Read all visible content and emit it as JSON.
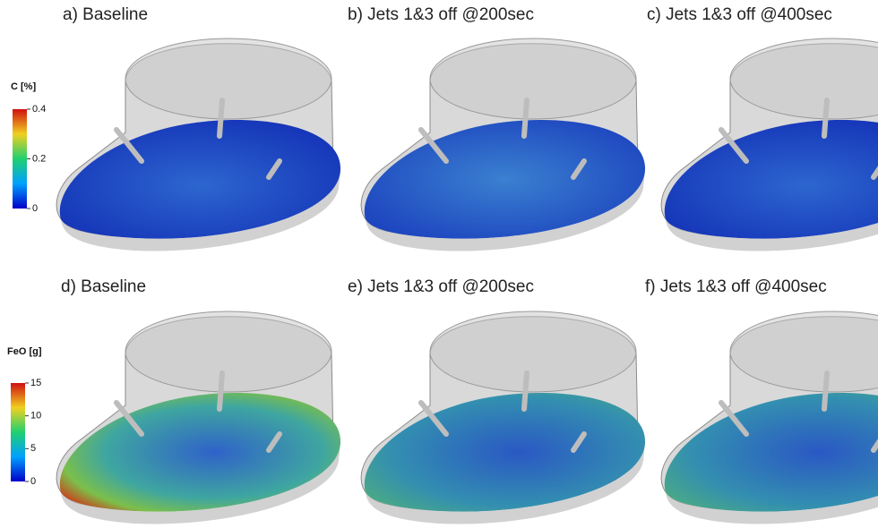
{
  "panels": [
    {
      "title": "a) Baseline"
    },
    {
      "title": "b) Jets 1&3 off @200sec"
    },
    {
      "title": "c) Jets 1&3 off @400sec"
    },
    {
      "title": "d) Baseline"
    },
    {
      "title": "e) Jets 1&3 off @200sec"
    },
    {
      "title": "f) Jets 1&3 off @400sec"
    }
  ],
  "colorbars": [
    {
      "label": "C [%]",
      "lim": [
        0,
        0.4
      ],
      "ticks": [
        0,
        0.2,
        0.4
      ]
    },
    {
      "label": "FeO [g]",
      "lim": [
        0,
        15
      ],
      "ticks": [
        0,
        5,
        10,
        15
      ]
    }
  ]
}
